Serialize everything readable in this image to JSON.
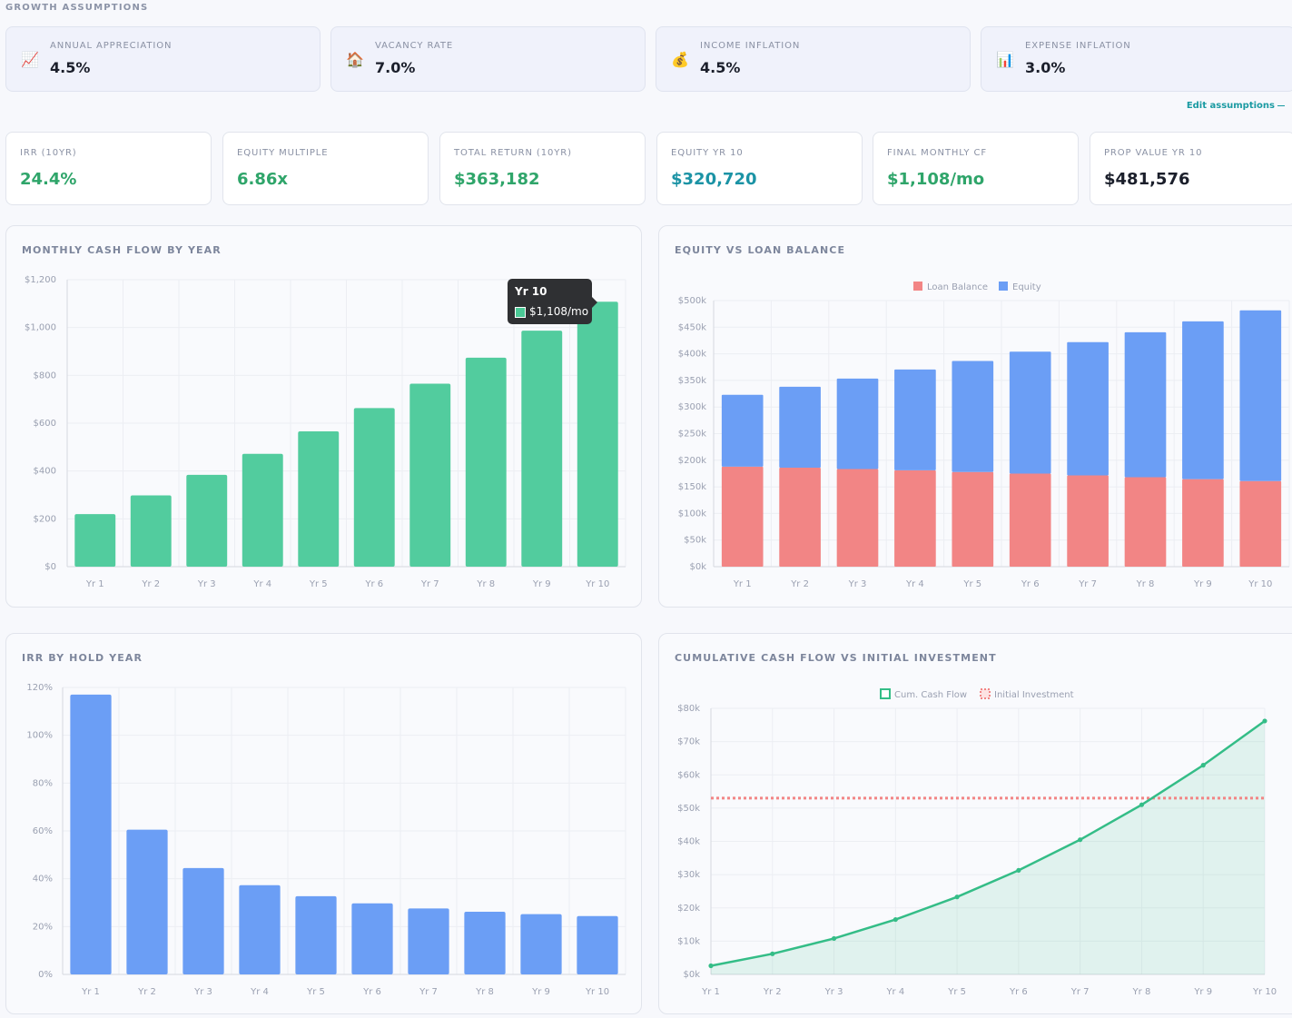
{
  "section_label": "GROWTH ASSUMPTIONS",
  "assumptions": [
    {
      "label": "ANNUAL APPRECIATION",
      "value": "4.5%",
      "icon": "chart-increasing-icon",
      "glyph": "📈"
    },
    {
      "label": "VACANCY RATE",
      "value": "7.0%",
      "icon": "house-icon",
      "glyph": "🏠"
    },
    {
      "label": "INCOME INFLATION",
      "value": "4.5%",
      "icon": "money-bag-icon",
      "glyph": "💰"
    },
    {
      "label": "EXPENSE INFLATION",
      "value": "3.0%",
      "icon": "bar-chart-icon",
      "glyph": "📊"
    }
  ],
  "edit_link": "Edit assumptions",
  "metrics": [
    {
      "label": "IRR (10YR)",
      "value": "24.4%",
      "color": "#2fa56a"
    },
    {
      "label": "EQUITY MULTIPLE",
      "value": "6.86x",
      "color": "#2fa56a"
    },
    {
      "label": "TOTAL RETURN (10YR)",
      "value": "$363,182",
      "color": "#2fa56a"
    },
    {
      "label": "EQUITY YR 10",
      "value": "$320,720",
      "color": "#1b93a5"
    },
    {
      "label": "FINAL MONTHLY CF",
      "value": "$1,108/mo",
      "color": "#2fa56a"
    },
    {
      "label": "PROP VALUE YR 10",
      "value": "$481,576",
      "color": "#1b1f2b"
    }
  ],
  "colors": {
    "green": "#52cc9e",
    "blue": "#6b9ef5",
    "red": "#f28585",
    "line": "#34bd87"
  },
  "chart_data": [
    {
      "id": "monthly-cf",
      "type": "bar",
      "title": "MONTHLY CASH FLOW BY YEAR",
      "categories": [
        "Yr 1",
        "Yr 2",
        "Yr 3",
        "Yr 4",
        "Yr 5",
        "Yr 6",
        "Yr 7",
        "Yr 8",
        "Yr 9",
        "Yr 10"
      ],
      "values": [
        220,
        298,
        384,
        472,
        566,
        663,
        765,
        874,
        987,
        1108
      ],
      "ylim": [
        0,
        1200
      ],
      "yticks": [
        "$0",
        "$200",
        "$400",
        "$600",
        "$800",
        "$1,000",
        "$1,200"
      ],
      "tooltip": {
        "title": "Yr 10",
        "value": "$1,108/mo"
      },
      "grid": true
    },
    {
      "id": "equity-loan",
      "type": "bar",
      "stacked": true,
      "title": "EQUITY VS LOAN BALANCE",
      "categories": [
        "Yr 1",
        "Yr 2",
        "Yr 3",
        "Yr 4",
        "Yr 5",
        "Yr 6",
        "Yr 7",
        "Yr 8",
        "Yr 9",
        "Yr 10"
      ],
      "series": [
        {
          "name": "Loan Balance",
          "values": [
            188000,
            186000,
            183500,
            181000,
            178000,
            175000,
            171500,
            168000,
            164500,
            160856
          ]
        },
        {
          "name": "Equity",
          "values": [
            135000,
            152000,
            170000,
            189500,
            208500,
            229000,
            250500,
            272500,
            296500,
            320720
          ]
        }
      ],
      "ylim": [
        0,
        500000
      ],
      "yticks": [
        "$0k",
        "$50k",
        "$100k",
        "$150k",
        "$200k",
        "$250k",
        "$300k",
        "$350k",
        "$400k",
        "$450k",
        "$500k"
      ],
      "legend": "top",
      "grid": true
    },
    {
      "id": "irr-hold",
      "type": "bar",
      "title": "IRR BY HOLD YEAR",
      "categories": [
        "Yr 1",
        "Yr 2",
        "Yr 3",
        "Yr 4",
        "Yr 5",
        "Yr 6",
        "Yr 7",
        "Yr 8",
        "Yr 9",
        "Yr 10"
      ],
      "values": [
        117,
        60.5,
        44.5,
        37.3,
        32.7,
        29.7,
        27.6,
        26.2,
        25.2,
        24.4
      ],
      "ylim": [
        0,
        120
      ],
      "yticks": [
        "0%",
        "20%",
        "40%",
        "60%",
        "80%",
        "100%",
        "120%"
      ],
      "grid": true
    },
    {
      "id": "cumulative-cf",
      "type": "line",
      "title": "CUMULATIVE CASH FLOW VS INITIAL INVESTMENT",
      "categories": [
        "Yr 1",
        "Yr 2",
        "Yr 3",
        "Yr 4",
        "Yr 5",
        "Yr 6",
        "Yr 7",
        "Yr 8",
        "Yr 9",
        "Yr 10"
      ],
      "series": [
        {
          "name": "Cum. Cash Flow",
          "values": [
            2600,
            6200,
            10800,
            16500,
            23300,
            31300,
            40500,
            51000,
            62900,
            76200
          ]
        },
        {
          "name": "Initial Investment",
          "values": [
            53000,
            53000,
            53000,
            53000,
            53000,
            53000,
            53000,
            53000,
            53000,
            53000
          ]
        }
      ],
      "ylim": [
        0,
        80000
      ],
      "yticks": [
        "$0k",
        "$10k",
        "$20k",
        "$30k",
        "$40k",
        "$50k",
        "$60k",
        "$70k",
        "$80k"
      ],
      "legend": "top",
      "grid": true
    }
  ]
}
